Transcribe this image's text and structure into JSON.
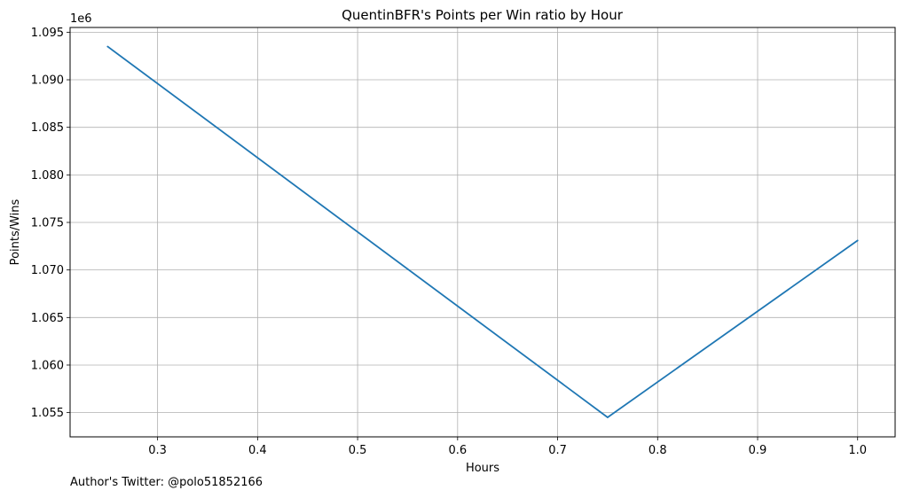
{
  "chart_data": {
    "type": "line",
    "title": "QuentinBFR's Points per Win ratio by Hour",
    "xlabel": "Hours",
    "ylabel": "Points/Wins",
    "y_offset_label": "1e6",
    "xlim": [
      0.2125,
      1.0375
    ],
    "ylim": [
      1.05245,
      1.0955
    ],
    "x_ticks": [
      0.3,
      0.4,
      0.5,
      0.6,
      0.7,
      0.8,
      0.9,
      1.0
    ],
    "x_tick_labels": [
      "0.3",
      "0.4",
      "0.5",
      "0.6",
      "0.7",
      "0.8",
      "0.9",
      "1.0"
    ],
    "y_ticks": [
      1.055,
      1.06,
      1.065,
      1.07,
      1.075,
      1.08,
      1.085,
      1.09,
      1.095
    ],
    "y_tick_labels": [
      "1.055",
      "1.060",
      "1.065",
      "1.070",
      "1.075",
      "1.080",
      "1.085",
      "1.090",
      "1.095"
    ],
    "grid": true,
    "series": [
      {
        "name": "Points/Wins",
        "color": "#1f77b4",
        "x": [
          0.25,
          0.75,
          1.0
        ],
        "y": [
          1.0935,
          1.0545,
          1.0731
        ]
      }
    ]
  },
  "footnote": "Author's Twitter: @polo51852166"
}
